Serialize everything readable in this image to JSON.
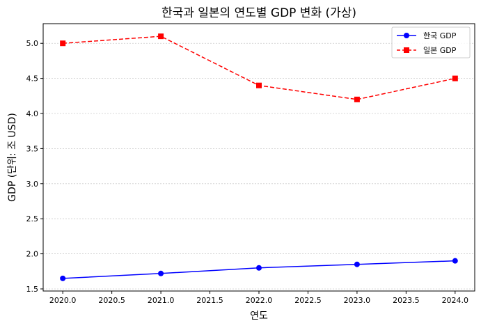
{
  "chart_data": {
    "type": "line",
    "title": "한국과 일본의 연도별 GDP 변화 (가상)",
    "xlabel": "연도",
    "ylabel": "GDP (단위: 조 USD)",
    "x": [
      2020,
      2021,
      2022,
      2023,
      2024
    ],
    "xlim": [
      2019.8,
      2024.2
    ],
    "ylim": [
      1.47,
      5.28
    ],
    "xticks": [
      2020.0,
      2020.5,
      2021.0,
      2021.5,
      2022.0,
      2022.5,
      2023.0,
      2023.5,
      2024.0
    ],
    "xtick_labels": [
      "2020.0",
      "2020.5",
      "2021.0",
      "2021.5",
      "2022.0",
      "2022.5",
      "2023.0",
      "2023.5",
      "2024.0"
    ],
    "yticks": [
      1.5,
      2.0,
      2.5,
      3.0,
      3.5,
      4.0,
      4.5,
      5.0
    ],
    "ytick_labels": [
      "1.5",
      "2.0",
      "2.5",
      "3.0",
      "3.5",
      "4.0",
      "4.5",
      "5.0"
    ],
    "grid": "y-dotted",
    "legend_position": "top-right",
    "series": [
      {
        "name": "한국 GDP",
        "values": [
          1.65,
          1.72,
          1.8,
          1.85,
          1.9
        ],
        "color": "#0000ff",
        "linestyle": "solid",
        "marker": "circle"
      },
      {
        "name": "일본 GDP",
        "values": [
          5.0,
          5.1,
          4.4,
          4.2,
          4.5
        ],
        "color": "#ff0000",
        "linestyle": "dashed",
        "marker": "square"
      }
    ]
  }
}
